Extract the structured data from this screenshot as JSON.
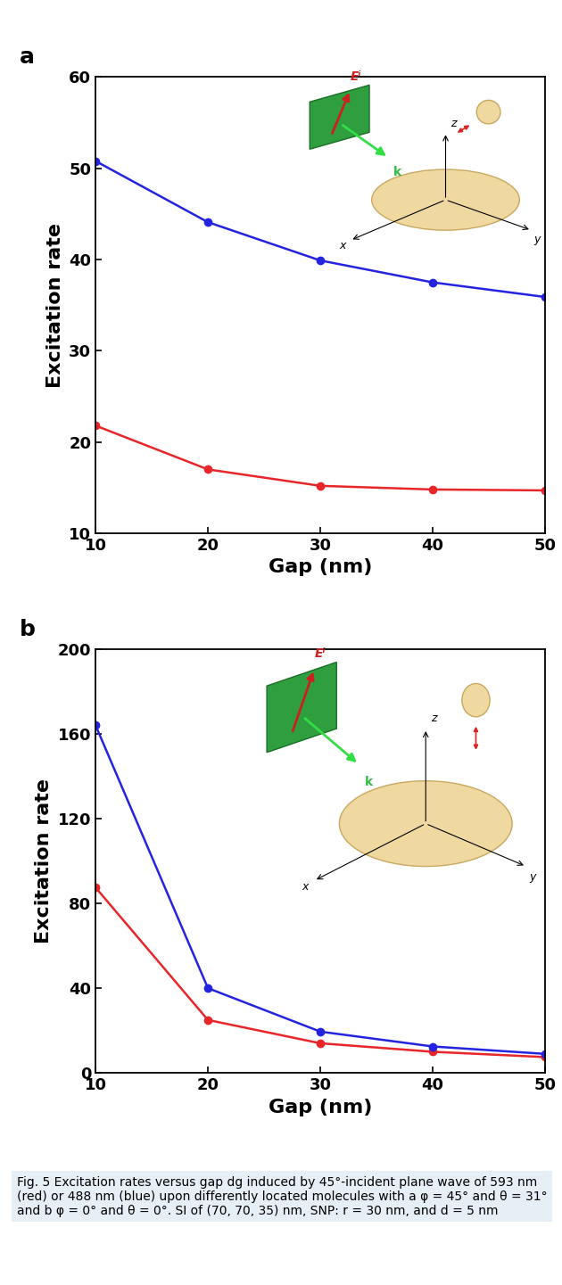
{
  "chart_data": [
    {
      "type": "line",
      "title": "a",
      "xlabel": "Gap (nm)",
      "ylabel": "Excitation rate",
      "x": [
        10,
        20,
        30,
        40,
        50
      ],
      "series": [
        {
          "color": "#e8262a",
          "marker": "o",
          "values": [
            21.8,
            17.0,
            15.2,
            14.8,
            14.7
          ]
        },
        {
          "color": "#2424e0",
          "marker": "o",
          "values": [
            50.8,
            44.1,
            39.9,
            37.5,
            35.9
          ]
        }
      ],
      "xlim": [
        10,
        50
      ],
      "xticks": [
        10,
        20,
        30,
        40,
        50
      ],
      "ylim": [
        10,
        60
      ],
      "yticks": [
        10,
        20,
        30,
        40,
        50,
        60
      ],
      "grid": false,
      "annotations": [
        "Eⁱ",
        "k",
        "x",
        "y",
        "z"
      ]
    },
    {
      "type": "line",
      "title": "b",
      "xlabel": "Gap (nm)",
      "ylabel": "Excitation rate",
      "x": [
        10,
        20,
        30,
        40,
        50
      ],
      "series": [
        {
          "color": "#e8262a",
          "marker": "o",
          "values": [
            87.5,
            25.0,
            14.0,
            10.0,
            7.5
          ]
        },
        {
          "color": "#2424e0",
          "marker": "o",
          "values": [
            164.0,
            40.0,
            19.5,
            12.5,
            9.0
          ]
        }
      ],
      "xlim": [
        10,
        50
      ],
      "xticks": [
        10,
        20,
        30,
        40,
        50
      ],
      "ylim": [
        0,
        200
      ],
      "yticks": [
        0,
        40,
        80,
        120,
        160,
        200
      ],
      "grid": false,
      "annotations": [
        "Eⁱ",
        "k",
        "x",
        "y",
        "z"
      ]
    }
  ],
  "caption": "Fig. 5 Excitation rates versus gap dg induced by 45°-incident plane wave of 593 nm (red) or 488 nm (blue) upon differently located molecules with a φ = 45° and θ = 31° and b φ = 0° and θ = 0°. SI of (70, 70, 35) nm, SNP: r = 30 nm, and d = 5 nm"
}
